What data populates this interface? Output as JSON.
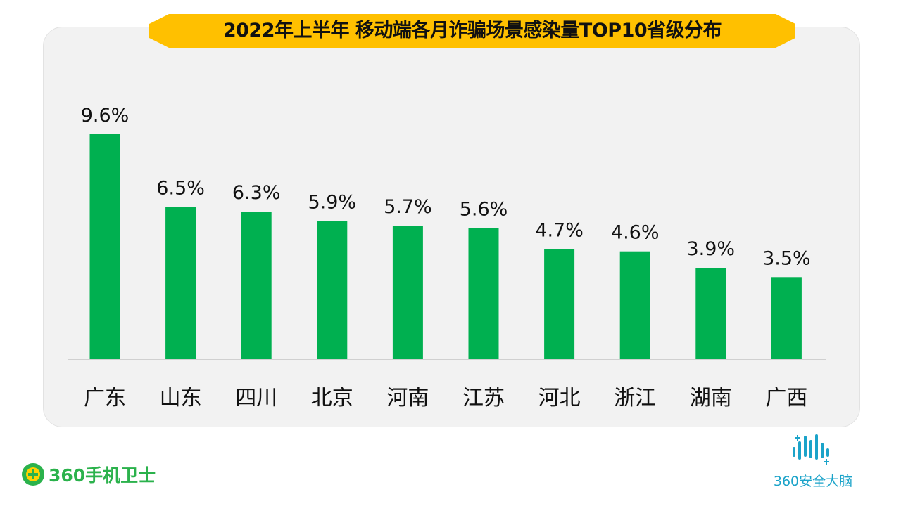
{
  "colors": {
    "bar": "#00b050",
    "banner": "#ffc000",
    "panel": "#f2f2f2",
    "text": "#111111",
    "brand_green": "#2bb24c",
    "brand_blue": "#1ba3c9"
  },
  "brands": {
    "left_name": "360手机卫士",
    "left_icon": "plus-circle-icon",
    "right_name": "360安全大脑",
    "right_icon": "brain-wave-icon"
  },
  "chart_data": {
    "type": "bar",
    "title": "2022年上半年 移动端各月诈骗场景感染量TOP10省级分布",
    "xlabel": "",
    "ylabel": "",
    "categories": [
      "广东",
      "山东",
      "四川",
      "北京",
      "河南",
      "江苏",
      "河北",
      "浙江",
      "湖南",
      "广西"
    ],
    "values": [
      9.6,
      6.5,
      6.3,
      5.9,
      5.7,
      5.6,
      4.7,
      4.6,
      3.9,
      3.5
    ],
    "value_labels": [
      "9.6%",
      "6.5%",
      "6.3%",
      "5.9%",
      "5.7%",
      "5.6%",
      "4.7%",
      "4.6%",
      "3.9%",
      "3.5%"
    ],
    "unit": "%",
    "ylim": [
      0,
      9.6
    ],
    "grid": false,
    "legend": "none"
  }
}
